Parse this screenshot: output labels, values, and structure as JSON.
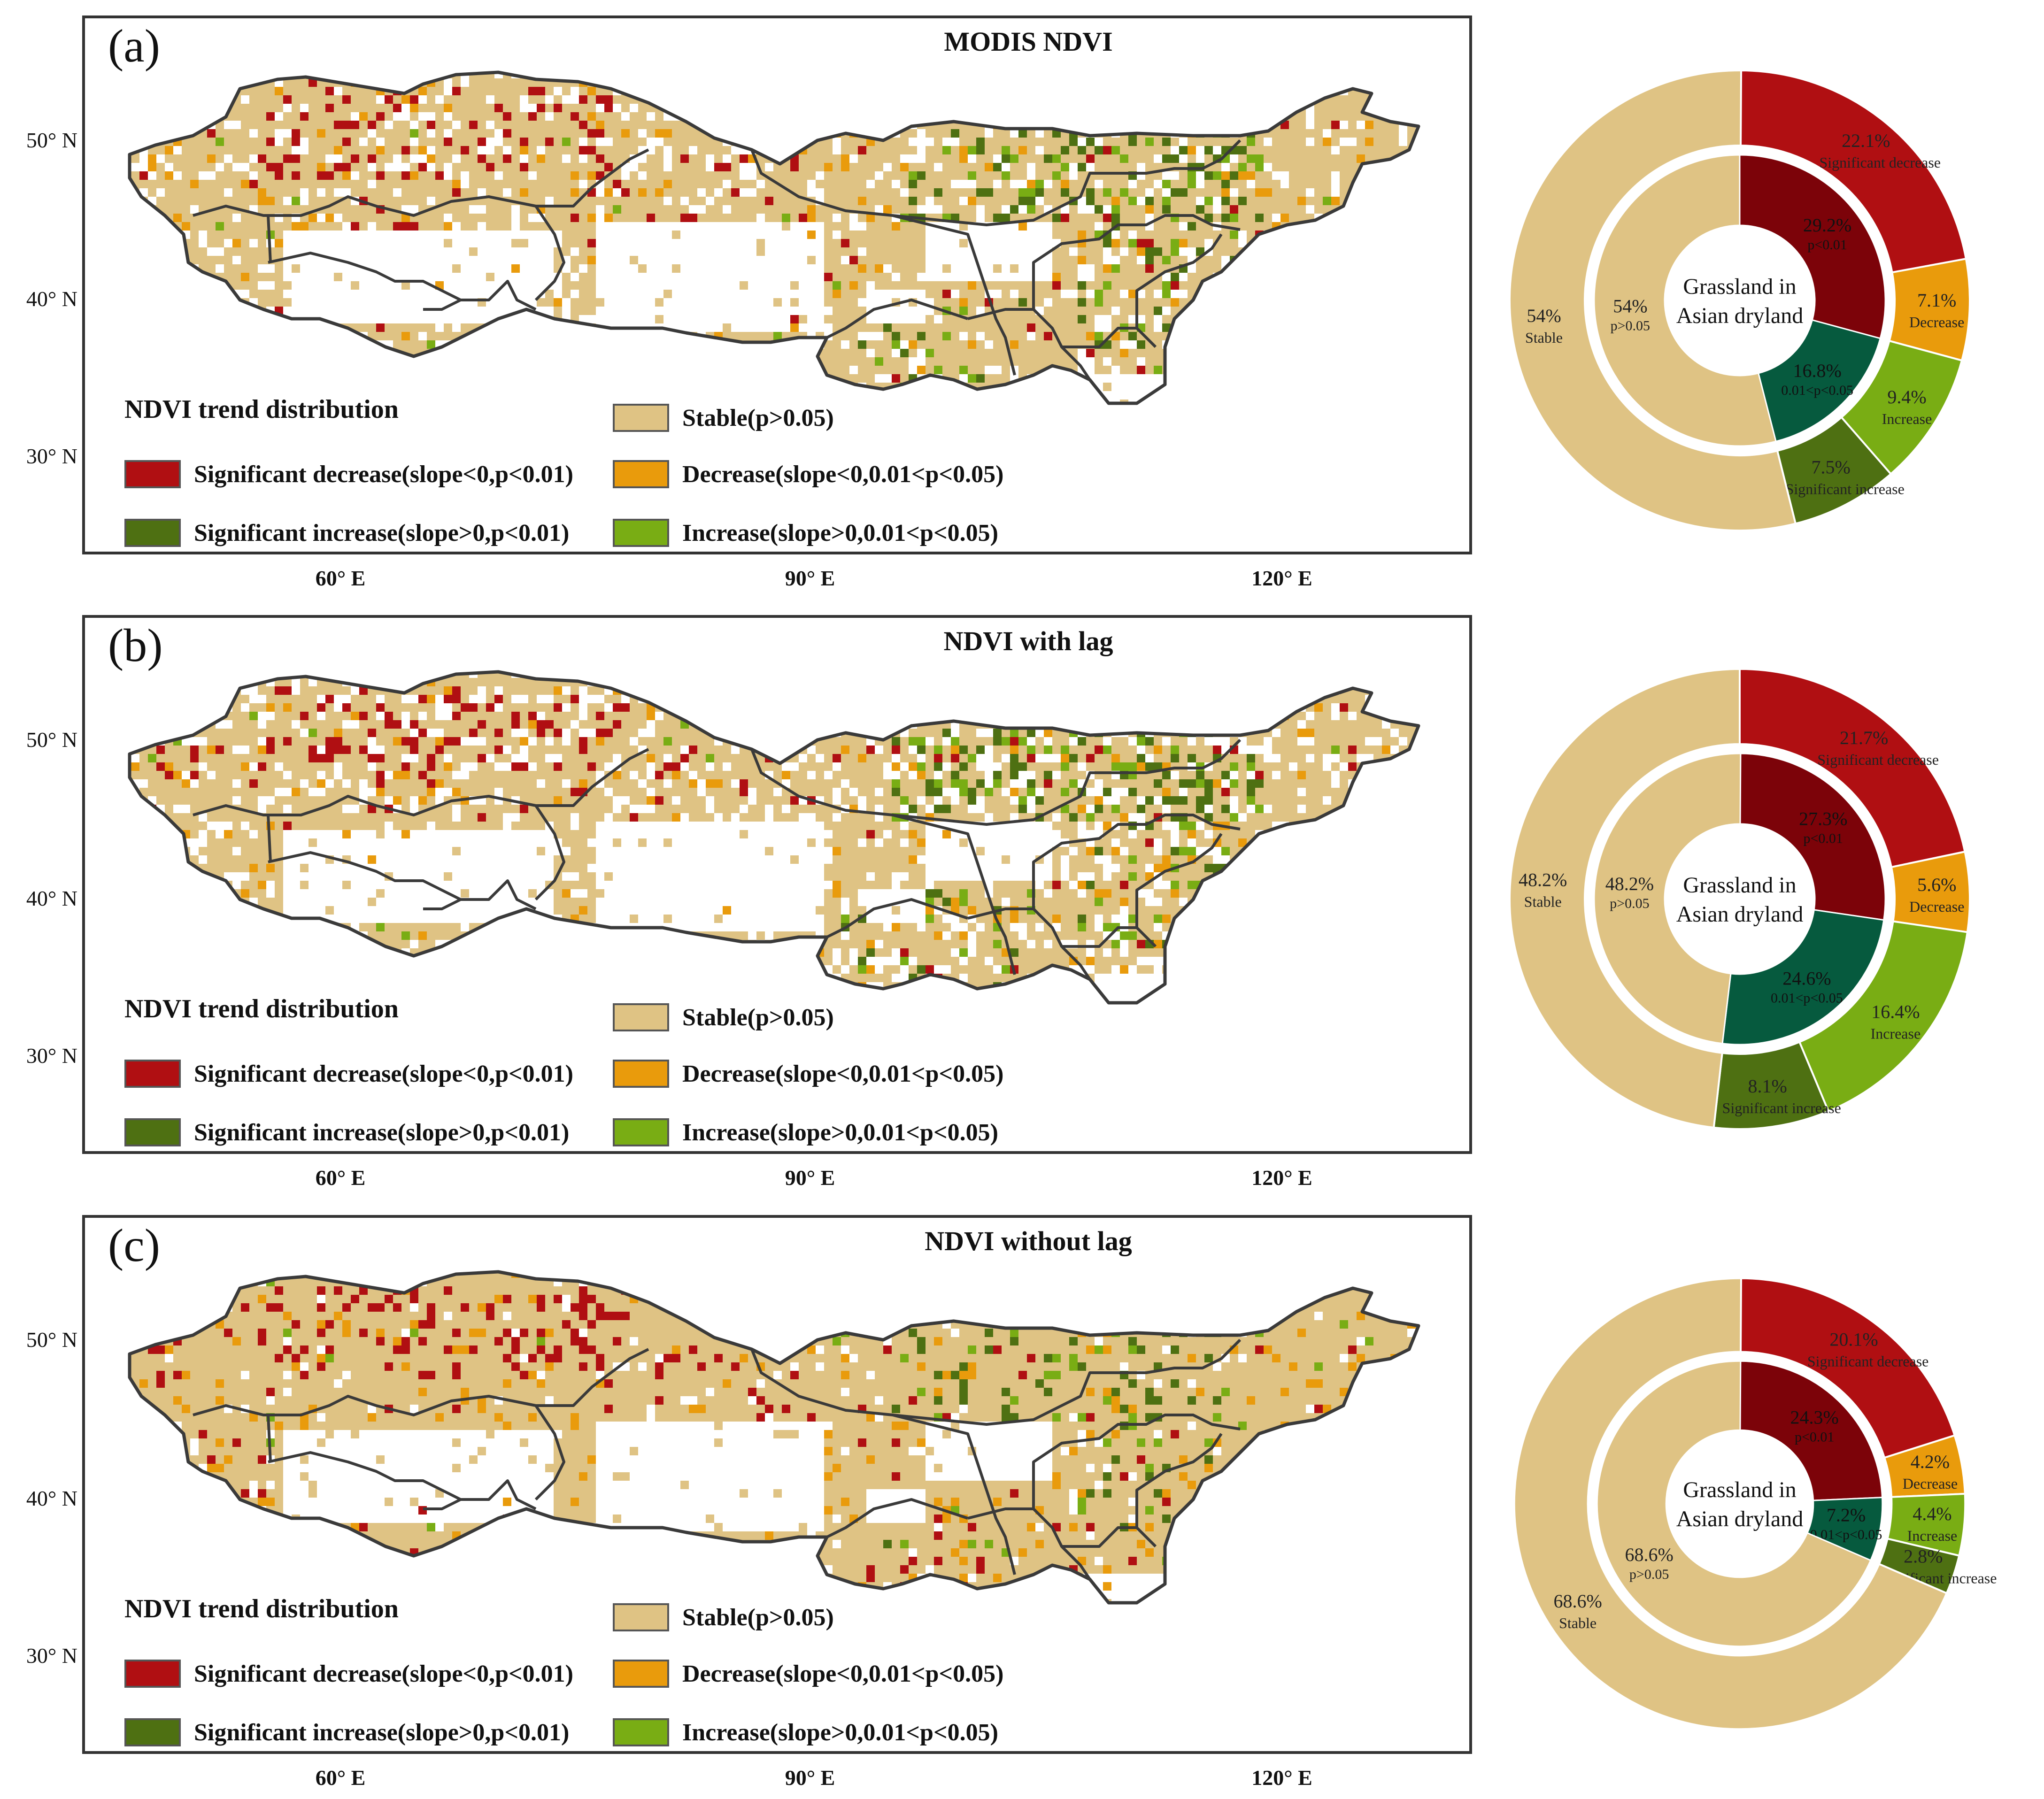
{
  "figure": {
    "lat_labels": [
      "50° N",
      "40° N",
      "30° N"
    ],
    "lon_labels": [
      "60° E",
      "90° E",
      "120° E"
    ],
    "legend_title": "NDVI trend distribution",
    "legend": [
      {
        "key": "stable",
        "label": "Stable(p>0.05)",
        "color": "#dfc384"
      },
      {
        "key": "sig_dec",
        "label": "Significant decrease(slope<0,p<0.01)",
        "color": "#b00f12"
      },
      {
        "key": "dec",
        "label": "Decrease(slope<0,0.01<p<0.05)",
        "color": "#e99b0c"
      },
      {
        "key": "sig_inc",
        "label": "Significant increase(slope>0,p<0.01)",
        "color": "#4e7012"
      },
      {
        "key": "inc",
        "label": "Increase(slope>0,0.01<p<0.05)",
        "color": "#79ad14"
      }
    ],
    "donut_center": [
      "Grassland in",
      "Asian dryland"
    ],
    "inner_colors": {
      "p_lt_001": "#7c0309",
      "mid": "#065a3e",
      "p_gt_005": "#dfc384"
    }
  },
  "chart_data": [
    {
      "panel": "(a)",
      "type": "pie",
      "title": "MODIS NDVI",
      "outer": [
        {
          "name": "Significant decrease",
          "value": 22.1,
          "label": "22.1%"
        },
        {
          "name": "Decrease",
          "value": 7.1,
          "label": "7.1%"
        },
        {
          "name": "Increase",
          "value": 9.4,
          "label": "9.4%"
        },
        {
          "name": "Significant increase",
          "value": 7.5,
          "label": "7.5%"
        },
        {
          "name": "Stable",
          "value": 54.0,
          "label": "54%"
        }
      ],
      "inner": [
        {
          "name": "p<0.01",
          "value": 29.2,
          "label": "29.2%"
        },
        {
          "name": "0.01<p<0.05",
          "value": 16.8,
          "label": "16.8%"
        },
        {
          "name": "p>0.05",
          "value": 54.0,
          "label": "54%"
        }
      ]
    },
    {
      "panel": "(b)",
      "type": "pie",
      "title": "NDVI with lag",
      "outer": [
        {
          "name": "Significant decrease",
          "value": 21.7,
          "label": "21.7%"
        },
        {
          "name": "Decrease",
          "value": 5.6,
          "label": "5.6%"
        },
        {
          "name": "Increase",
          "value": 16.4,
          "label": "16.4%"
        },
        {
          "name": "Significant increase",
          "value": 8.1,
          "label": "8.1%"
        },
        {
          "name": "Stable",
          "value": 48.2,
          "label": "48.2%"
        }
      ],
      "inner": [
        {
          "name": "p<0.01",
          "value": 27.3,
          "label": "27.3%"
        },
        {
          "name": "0.01<p<0.05",
          "value": 24.6,
          "label": "24.6%"
        },
        {
          "name": "p>0.05",
          "value": 48.2,
          "label": "48.2%"
        }
      ]
    },
    {
      "panel": "(c)",
      "type": "pie",
      "title": "NDVI without lag",
      "outer": [
        {
          "name": "Significant decrease",
          "value": 20.1,
          "label": "20.1%"
        },
        {
          "name": "Decrease",
          "value": 4.2,
          "label": "4.2%"
        },
        {
          "name": "Increase",
          "value": 4.4,
          "label": "4.4%"
        },
        {
          "name": "Significant increase",
          "value": 2.8,
          "label": "2.8%"
        },
        {
          "name": "Stable",
          "value": 68.6,
          "label": "68.6%"
        }
      ],
      "inner": [
        {
          "name": "p<0.01",
          "value": 24.3,
          "label": "24.3%"
        },
        {
          "name": "0.01<p<0.05",
          "value": 7.2,
          "label": "7.2%"
        },
        {
          "name": "p>0.05",
          "value": 68.6,
          "label": "68.6%"
        }
      ]
    }
  ]
}
